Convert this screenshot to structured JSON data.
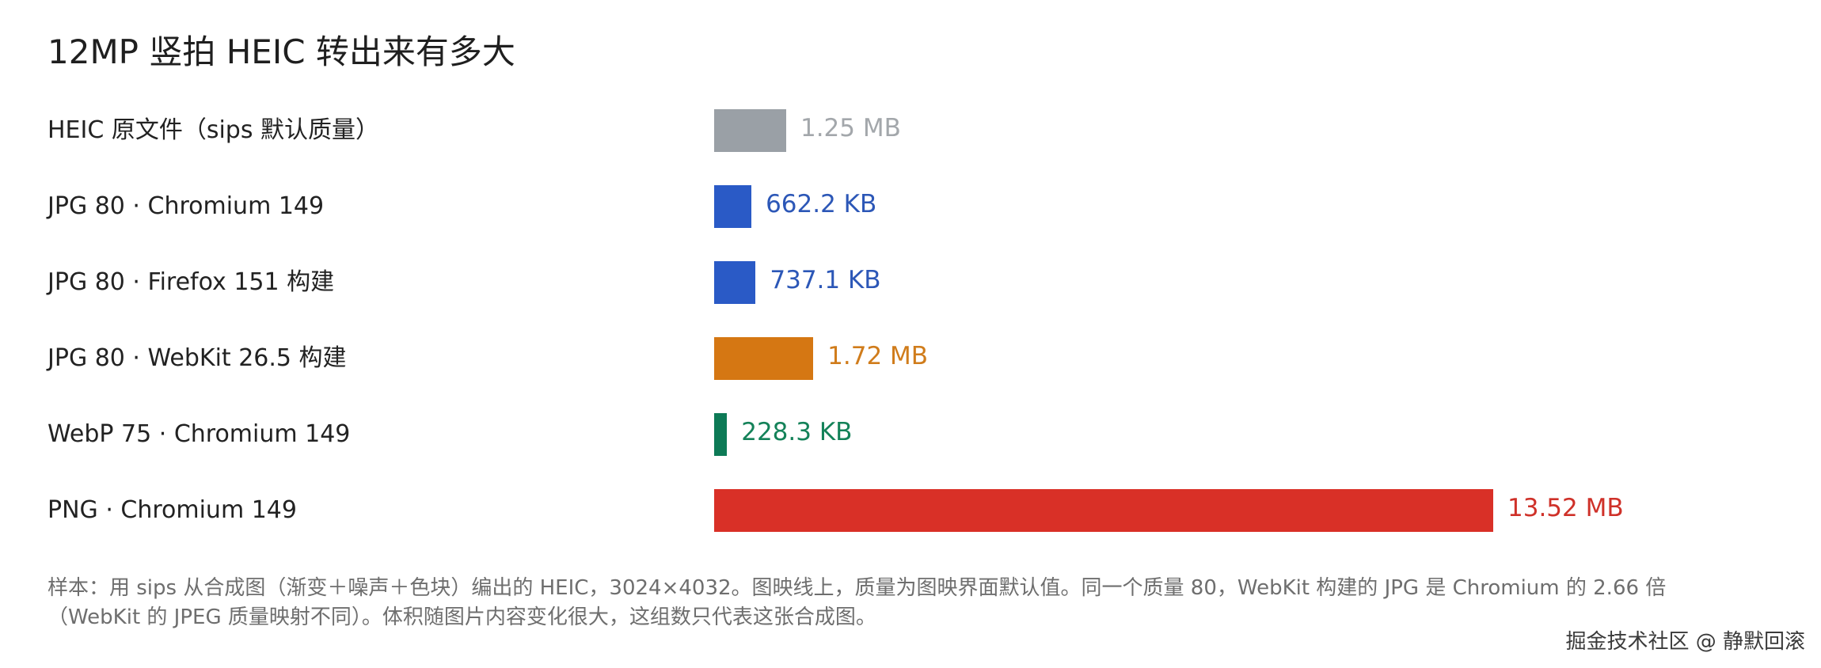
{
  "chart_data": {
    "type": "bar",
    "orientation": "horizontal",
    "title": "12MP 竖拍 HEIC 转出来有多大",
    "unit_base": "MB",
    "categories": [
      "HEIC 原文件（sips 默认质量）",
      "JPG 80 · Chromium 149",
      "JPG 80 · Firefox 151 构建",
      "JPG 80 · WebKit 26.5 构建",
      "WebP 75 · Chromium 149",
      "PNG · Chromium 149"
    ],
    "values": [
      1.25,
      0.6467,
      0.7198,
      1.72,
      0.2229,
      13.52
    ],
    "value_labels": [
      "1.25 MB",
      "662.2 KB",
      "737.1 KB",
      "1.72 MB",
      "228.3 KB",
      "13.52 MB"
    ],
    "colors": [
      "#9aa0a6",
      "#2a5ac6",
      "#2a5ac6",
      "#d57713",
      "#0d7a56",
      "#d93027"
    ],
    "label_colors": [
      "#a3a7ab",
      "#2c57b7",
      "#2c57b7",
      "#d07c1b",
      "#148259",
      "#cf3129"
    ],
    "xlim": [
      0,
      13.52
    ],
    "grid": false,
    "legend": "none"
  },
  "footnote": {
    "line1": "样本：用 sips 从合成图（渐变＋噪声＋色块）编出的 HEIC，3024×4032。图映线上，质量为图映界面默认值。同一个质量 80，WebKit 构建的 JPG 是 Chromium 的 2.66 倍",
    "line2": "（WebKit 的 JPEG 质量映射不同）。体积随图片内容变化很大，这组数只代表这张合成图。"
  },
  "watermark": "掘金技术社区 @ 静默回滚"
}
